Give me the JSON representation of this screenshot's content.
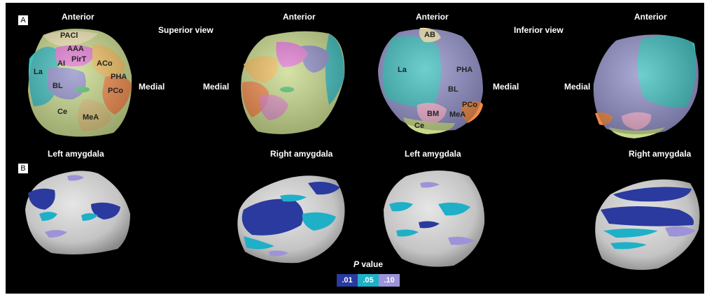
{
  "panel_letters": {
    "a": "A",
    "b": "B"
  },
  "row_a": {
    "anterior_labels": [
      "Anterior",
      "Anterior",
      "Anterior",
      "Anterior"
    ],
    "superior_view": "Superior view",
    "inferior_view": "Inferior view",
    "medial_labels": [
      "Medial",
      "Medial",
      "Medial",
      "Medial"
    ]
  },
  "region_labels": {
    "left_superior": [
      "PACl",
      "AAA",
      "PirT",
      "AI",
      "ACo",
      "La",
      "PHA",
      "BL",
      "PCo",
      "Ce",
      "MeA"
    ],
    "left_inferior": [
      "AB",
      "La",
      "PHA",
      "BL",
      "PCo",
      "BM",
      "MeA",
      "Ce"
    ]
  },
  "row_b": {
    "labels": [
      "Left amygdala",
      "Right amygdala",
      "Left amygdala",
      "Right amygdala"
    ]
  },
  "legend": {
    "title_italic": "P",
    "title_rest": " value",
    "items": [
      {
        "label": ".01",
        "color": "#2b3a9e"
      },
      {
        "label": ".05",
        "color": "#1fb0c8"
      },
      {
        "label": ".10",
        "color": "#9c93d8"
      }
    ]
  },
  "colors": {
    "background": "#000000",
    "surface_gray": "#c9c9c9",
    "region_green": "#c8d98a",
    "region_cyan": "#3fbfbf",
    "region_purple": "#8f8fc8",
    "region_pink": "#e07ad0",
    "region_orange": "#f08a4a",
    "region_yellow": "#f0c060",
    "region_cream": "#f0e6b0"
  }
}
